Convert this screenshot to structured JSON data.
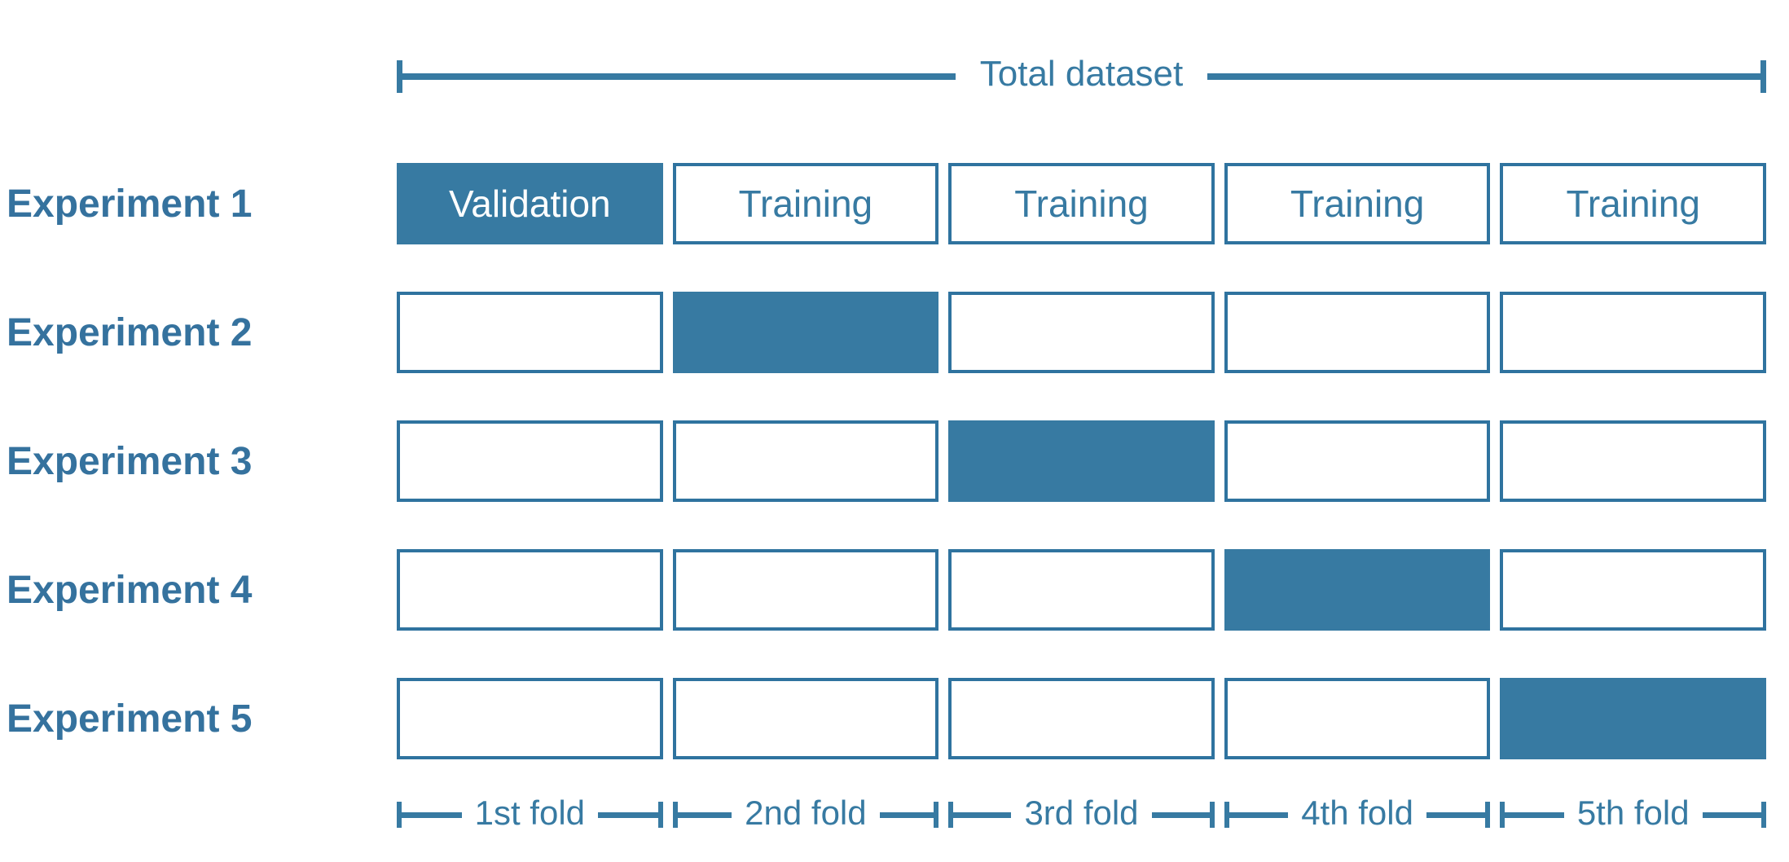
{
  "colors": {
    "accent_blue": "#377aa2",
    "filled_cell_text": "#ffffff",
    "background": "#ffffff"
  },
  "header": {
    "label": "Total dataset"
  },
  "experiments": [
    {
      "label": "Experiment 1",
      "cells": [
        {
          "text": "Validation",
          "state": "validation"
        },
        {
          "text": "Training",
          "state": "training"
        },
        {
          "text": "Training",
          "state": "training"
        },
        {
          "text": "Training",
          "state": "training"
        },
        {
          "text": "Training",
          "state": "training"
        }
      ]
    },
    {
      "label": "Experiment 2",
      "cells": [
        {
          "text": "",
          "state": "empty"
        },
        {
          "text": "",
          "state": "filled"
        },
        {
          "text": "",
          "state": "empty"
        },
        {
          "text": "",
          "state": "empty"
        },
        {
          "text": "",
          "state": "empty"
        }
      ]
    },
    {
      "label": "Experiment 3",
      "cells": [
        {
          "text": "",
          "state": "empty"
        },
        {
          "text": "",
          "state": "empty"
        },
        {
          "text": "",
          "state": "filled"
        },
        {
          "text": "",
          "state": "empty"
        },
        {
          "text": "",
          "state": "empty"
        }
      ]
    },
    {
      "label": "Experiment 4",
      "cells": [
        {
          "text": "",
          "state": "empty"
        },
        {
          "text": "",
          "state": "empty"
        },
        {
          "text": "",
          "state": "empty"
        },
        {
          "text": "",
          "state": "filled"
        },
        {
          "text": "",
          "state": "empty"
        }
      ]
    },
    {
      "label": "Experiment 5",
      "cells": [
        {
          "text": "",
          "state": "empty"
        },
        {
          "text": "",
          "state": "empty"
        },
        {
          "text": "",
          "state": "empty"
        },
        {
          "text": "",
          "state": "empty"
        },
        {
          "text": "",
          "state": "filled"
        }
      ]
    }
  ],
  "folds": [
    {
      "label": "1st fold"
    },
    {
      "label": "2nd fold"
    },
    {
      "label": "3rd fold"
    },
    {
      "label": "4th fold"
    },
    {
      "label": "5th fold"
    }
  ]
}
